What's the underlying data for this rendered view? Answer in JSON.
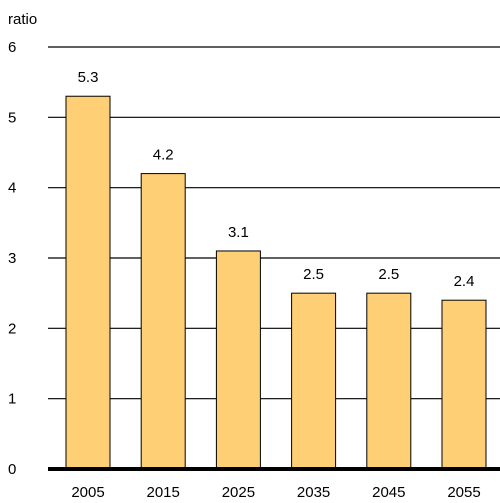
{
  "chart_data": {
    "type": "bar",
    "title": "",
    "xlabel": "",
    "ylabel": "ratio",
    "categories": [
      "2005",
      "2015",
      "2025",
      "2035",
      "2045",
      "2055"
    ],
    "values": [
      5.3,
      4.2,
      3.1,
      2.5,
      2.5,
      2.4
    ],
    "data_labels": [
      "5.3",
      "4.2",
      "3.1",
      "2.5",
      "2.5",
      "2.4"
    ],
    "ylim": [
      0,
      6
    ],
    "yticks": [
      0,
      1,
      2,
      3,
      4,
      5,
      6
    ],
    "ytick_labels": [
      "0",
      "1",
      "2",
      "3",
      "4",
      "5",
      "6"
    ],
    "grid": "horizontal",
    "legend": "none",
    "colors": {
      "bar_fill": "#FFCF75",
      "bar_stroke": "#000000",
      "gridline": "#000000",
      "text": "#000000"
    }
  }
}
